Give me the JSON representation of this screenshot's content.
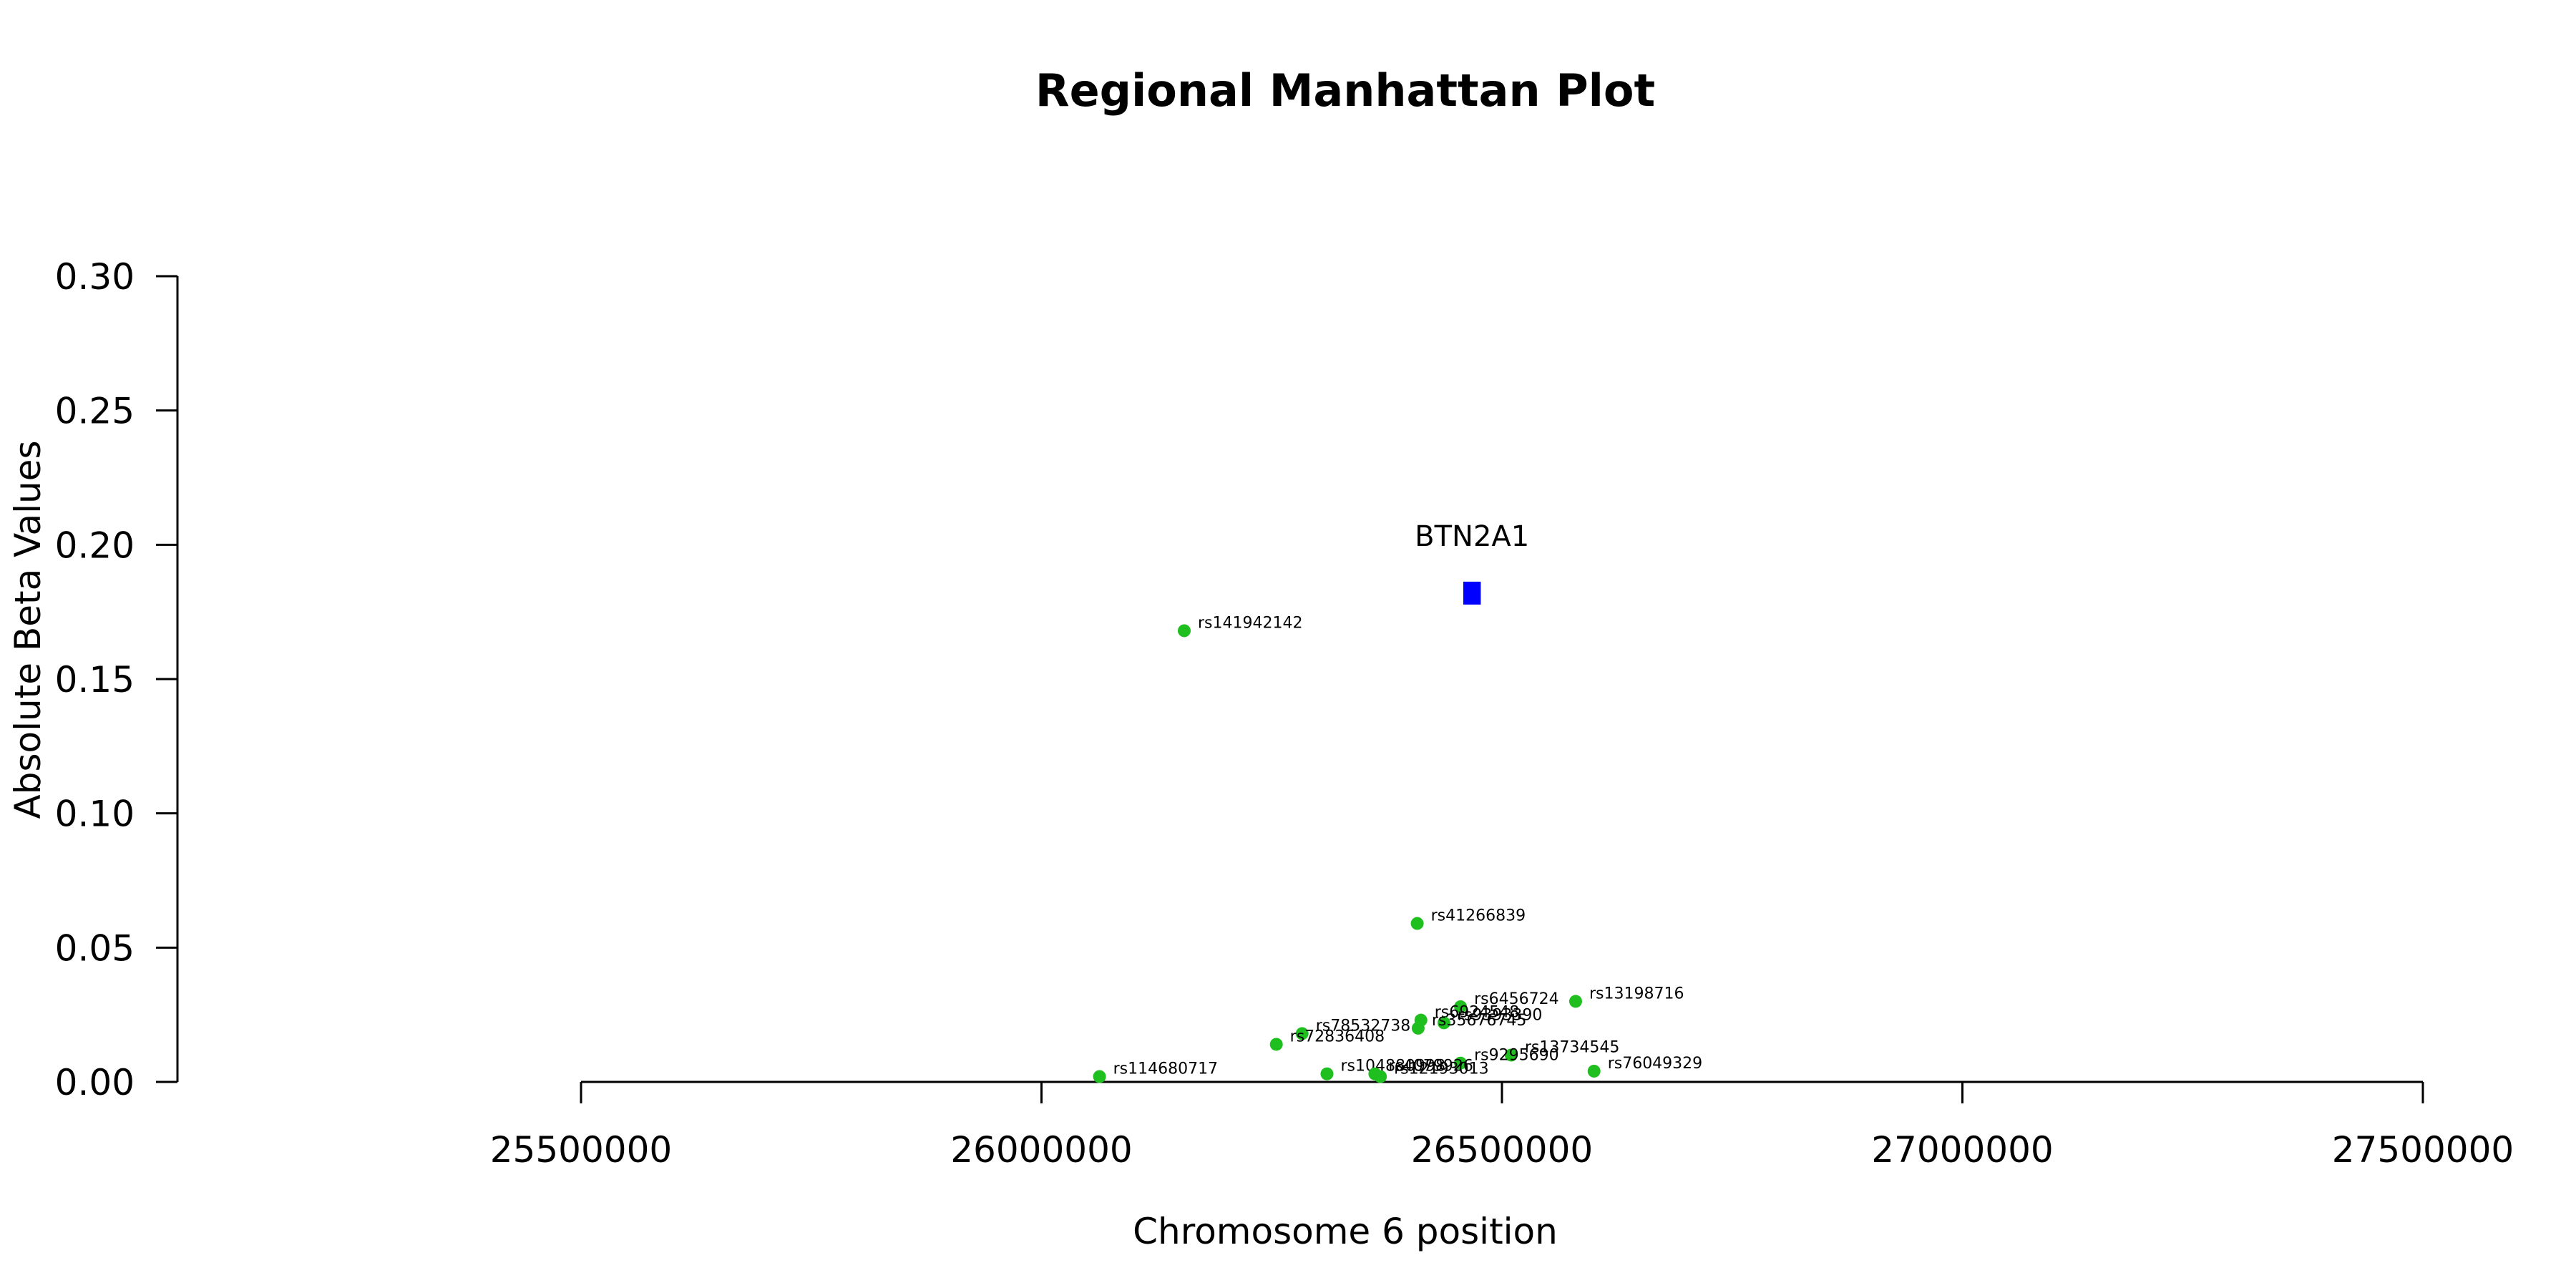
{
  "chart_data": {
    "type": "scatter",
    "title": "Regional Manhattan Plot",
    "xlabel": "Chromosome 6 position",
    "ylabel": "Absolute Beta Values",
    "xlim": [
      25500000,
      27500000
    ],
    "ylim": [
      0,
      0.3
    ],
    "x_ticks": [
      "25500000",
      "26000000",
      "26500000",
      "27000000",
      "27500000"
    ],
    "y_ticks": [
      "0.00",
      "0.05",
      "0.10",
      "0.15",
      "0.20",
      "0.25",
      "0.30"
    ],
    "grid": false,
    "point_color": "#1fbf1f",
    "gene_color": "#0000ff",
    "gene": {
      "name": "BTN2A1",
      "start": 26458000,
      "end": 26477000,
      "value": 0.182
    },
    "points": [
      {
        "label": "rs141942142",
        "x": 26155000,
        "y": 0.168
      },
      {
        "label": "rs41266839",
        "x": 26408000,
        "y": 0.059
      },
      {
        "label": "rs13198716",
        "x": 26580000,
        "y": 0.03
      },
      {
        "label": "rs6456724",
        "x": 26455000,
        "y": 0.028
      },
      {
        "label": "rs6924548",
        "x": 26412000,
        "y": 0.023
      },
      {
        "label": "rs9393390",
        "x": 26437000,
        "y": 0.022
      },
      {
        "label": "rs35676745",
        "x": 26409000,
        "y": 0.02
      },
      {
        "label": "rs78532738",
        "x": 26283000,
        "y": 0.018
      },
      {
        "label": "rs72836408",
        "x": 26255000,
        "y": 0.014
      },
      {
        "label": "rs13734545",
        "x": 26510000,
        "y": 0.01
      },
      {
        "label": "rs9295690",
        "x": 26455000,
        "y": 0.007
      },
      {
        "label": "rs76049329",
        "x": 26600000,
        "y": 0.004
      },
      {
        "label": "rs104880998",
        "x": 26310000,
        "y": 0.003
      },
      {
        "label": "rs4079926",
        "x": 26362000,
        "y": 0.003
      },
      {
        "label": "rs12193013",
        "x": 26368000,
        "y": 0.002
      },
      {
        "label": "rs114680717",
        "x": 26063000,
        "y": 0.002
      }
    ]
  }
}
